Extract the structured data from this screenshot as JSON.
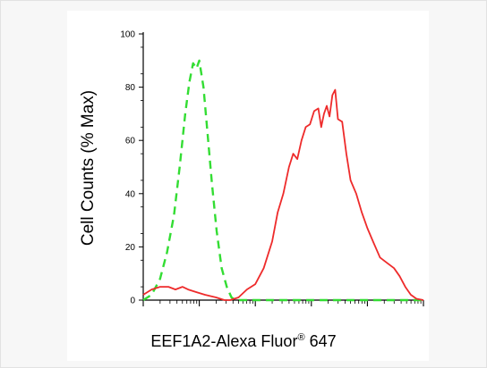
{
  "chart_data": {
    "type": "line",
    "title": "",
    "xlabel": "EEF1A2-Alexa Fluor",
    "xlabel_superscript": "®",
    "xlabel_suffix": " 647",
    "ylabel": "Cell Counts (% Max)",
    "ylim": [
      0,
      100
    ],
    "y_ticks": [
      0,
      20,
      40,
      60,
      80,
      100
    ],
    "x_scale": "log",
    "x_tick_labels": "none",
    "grid": false,
    "legend": "none",
    "series": [
      {
        "style": "dashed",
        "color": "#33dd33",
        "points": [
          [
            0.0,
            0
          ],
          [
            0.03,
            2
          ],
          [
            0.06,
            8
          ],
          [
            0.085,
            18
          ],
          [
            0.11,
            32
          ],
          [
            0.13,
            50
          ],
          [
            0.15,
            70
          ],
          [
            0.165,
            82
          ],
          [
            0.178,
            89
          ],
          [
            0.19,
            87
          ],
          [
            0.2,
            90
          ],
          [
            0.215,
            80
          ],
          [
            0.23,
            62
          ],
          [
            0.245,
            44
          ],
          [
            0.262,
            26
          ],
          [
            0.28,
            12
          ],
          [
            0.298,
            5
          ],
          [
            0.315,
            1
          ],
          [
            0.33,
            0
          ],
          [
            1.0,
            0
          ]
        ]
      },
      {
        "style": "solid",
        "color": "#ee2b2b",
        "points": [
          [
            0.0,
            2
          ],
          [
            0.03,
            4
          ],
          [
            0.06,
            5
          ],
          [
            0.09,
            5
          ],
          [
            0.115,
            4
          ],
          [
            0.14,
            5
          ],
          [
            0.16,
            4
          ],
          [
            0.19,
            3
          ],
          [
            0.22,
            2
          ],
          [
            0.26,
            1
          ],
          [
            0.29,
            0
          ],
          [
            0.31,
            0
          ],
          [
            0.34,
            1
          ],
          [
            0.37,
            4
          ],
          [
            0.4,
            6
          ],
          [
            0.43,
            12
          ],
          [
            0.46,
            22
          ],
          [
            0.48,
            33
          ],
          [
            0.5,
            40
          ],
          [
            0.52,
            50
          ],
          [
            0.535,
            55
          ],
          [
            0.55,
            53
          ],
          [
            0.565,
            60
          ],
          [
            0.58,
            65
          ],
          [
            0.595,
            66
          ],
          [
            0.61,
            71
          ],
          [
            0.625,
            72
          ],
          [
            0.635,
            65
          ],
          [
            0.645,
            70
          ],
          [
            0.655,
            73
          ],
          [
            0.665,
            69
          ],
          [
            0.675,
            77
          ],
          [
            0.685,
            79
          ],
          [
            0.695,
            68
          ],
          [
            0.71,
            67
          ],
          [
            0.725,
            55
          ],
          [
            0.74,
            45
          ],
          [
            0.76,
            40
          ],
          [
            0.78,
            33
          ],
          [
            0.8,
            27
          ],
          [
            0.82,
            22
          ],
          [
            0.845,
            16
          ],
          [
            0.87,
            14
          ],
          [
            0.895,
            12
          ],
          [
            0.915,
            9
          ],
          [
            0.935,
            5
          ],
          [
            0.955,
            2
          ],
          [
            0.975,
            0.5
          ],
          [
            1.0,
            0
          ]
        ]
      }
    ]
  }
}
